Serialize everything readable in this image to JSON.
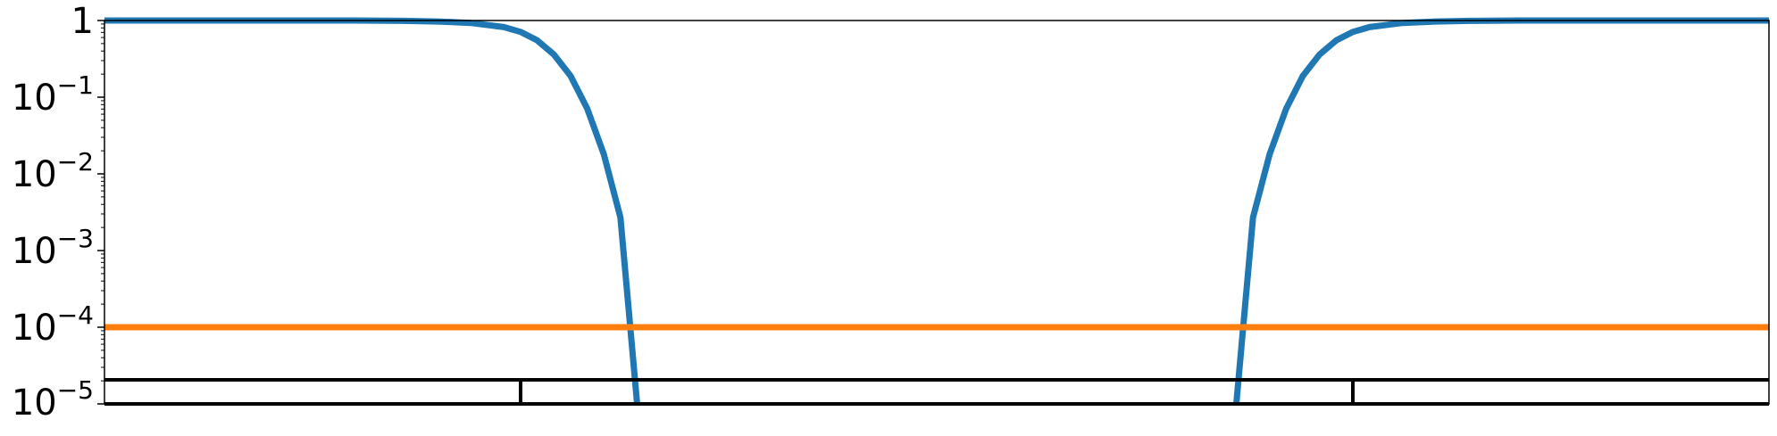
{
  "chart_data": {
    "type": "line",
    "title": "",
    "xlabel": "",
    "ylabel": "",
    "yscale": "log",
    "ylim": [
      1e-05,
      1
    ],
    "x_ticks_shown": false,
    "grid": false,
    "legend": "none",
    "y_ticks": [
      {
        "value": 1,
        "base": "1",
        "exp": ""
      },
      {
        "value": 0.1,
        "base": "10",
        "exp": "−1"
      },
      {
        "value": 0.01,
        "base": "10",
        "exp": "−2"
      },
      {
        "value": 0.001,
        "base": "10",
        "exp": "−3"
      },
      {
        "value": 0.0001,
        "base": "10",
        "exp": "−4"
      },
      {
        "value": 1e-05,
        "base": "10",
        "exp": "−5"
      }
    ],
    "series": [
      {
        "color": "#1f77b4",
        "segments": [
          {
            "x": [
              0.0,
              0.05,
              0.1,
              0.15,
              0.18,
              0.2,
              0.22,
              0.24,
              0.25,
              0.26,
              0.27,
              0.28,
              0.29,
              0.3,
              0.31,
              0.32
            ],
            "y": [
              1,
              1,
              1,
              1,
              0.99,
              0.97,
              0.93,
              0.82,
              0.71,
              0.55,
              0.36,
              0.19,
              0.071,
              0.018,
              0.0027,
              1e-05
            ]
          },
          {
            "x": [
              0.68,
              0.69,
              0.7,
              0.71,
              0.72,
              0.73,
              0.74,
              0.75,
              0.76,
              0.78,
              0.8,
              0.82,
              0.85,
              0.9,
              0.95,
              1.0
            ],
            "y": [
              1e-05,
              0.0027,
              0.018,
              0.071,
              0.19,
              0.36,
              0.55,
              0.71,
              0.82,
              0.93,
              0.97,
              0.99,
              1,
              1,
              1,
              1
            ]
          }
        ]
      },
      {
        "color": "#ff7f0e",
        "segments": [
          {
            "x": [
              0.0,
              1.0
            ],
            "y": [
              0.0001,
              0.0001
            ]
          }
        ]
      }
    ],
    "band": {
      "color": "#000000",
      "dividers_x": [
        0.25,
        0.75
      ]
    }
  }
}
